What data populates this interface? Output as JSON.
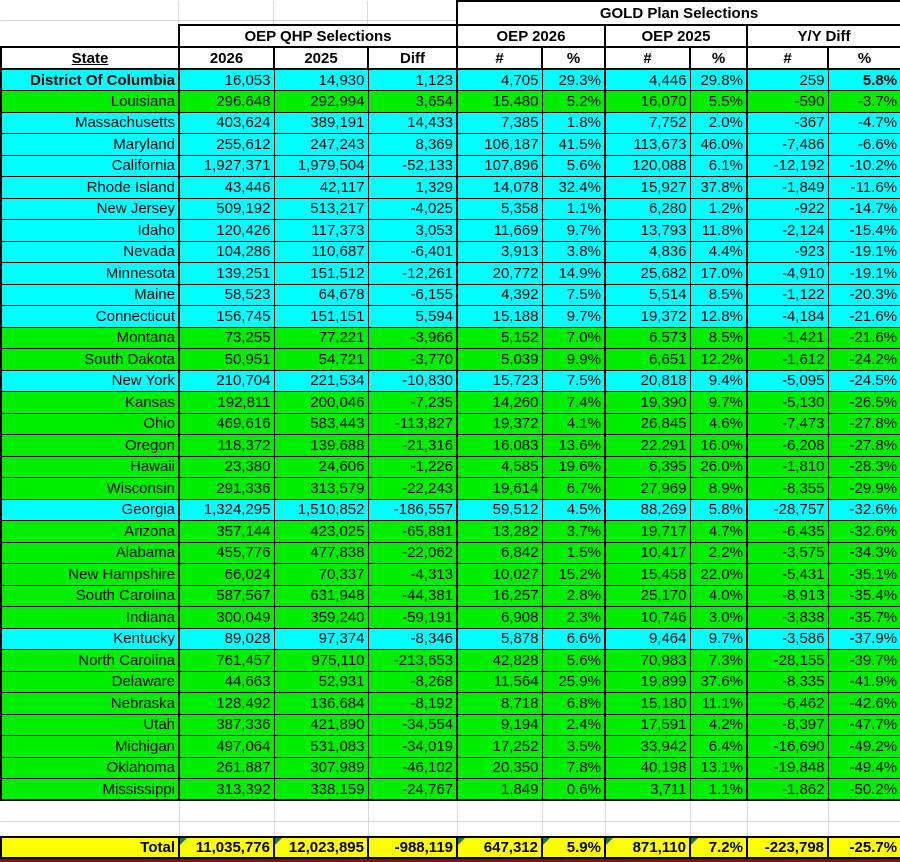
{
  "table": {
    "gold_header": "GOLD Plan Selections",
    "qhp_header": "OEP QHP Selections",
    "groups": {
      "oep2026": "OEP 2026",
      "oep2025": "OEP 2025",
      "yydiff": "Y/Y Diff"
    },
    "columns": [
      "State",
      "2026",
      "2025",
      "Diff",
      "#",
      "%",
      "#",
      "%",
      "#",
      "%"
    ],
    "rows": [
      {
        "state": "District Of Columbia",
        "cells": [
          "16,053",
          "14,930",
          "1,123",
          "4,705",
          "29.3%",
          "4,446",
          "29.8%",
          "259",
          "5.8%"
        ],
        "color": "cyan",
        "bold": true
      },
      {
        "state": "Louisiana",
        "cells": [
          "296,648",
          "292,994",
          "3,654",
          "15,480",
          "5.2%",
          "16,070",
          "5.5%",
          "-590",
          "-3.7%"
        ],
        "color": "green"
      },
      {
        "state": "Massachusetts",
        "cells": [
          "403,624",
          "389,191",
          "14,433",
          "7,385",
          "1.8%",
          "7,752",
          "2.0%",
          "-367",
          "-4.7%"
        ],
        "color": "cyan"
      },
      {
        "state": "Maryland",
        "cells": [
          "255,612",
          "247,243",
          "8,369",
          "106,187",
          "41.5%",
          "113,673",
          "46.0%",
          "-7,486",
          "-6.6%"
        ],
        "color": "cyan"
      },
      {
        "state": "California",
        "cells": [
          "1,927,371",
          "1,979,504",
          "-52,133",
          "107,896",
          "5.6%",
          "120,088",
          "6.1%",
          "-12,192",
          "-10.2%"
        ],
        "color": "cyan"
      },
      {
        "state": "Rhode Island",
        "cells": [
          "43,446",
          "42,117",
          "1,329",
          "14,078",
          "32.4%",
          "15,927",
          "37.8%",
          "-1,849",
          "-11.6%"
        ],
        "color": "cyan"
      },
      {
        "state": "New Jersey",
        "cells": [
          "509,192",
          "513,217",
          "-4,025",
          "5,358",
          "1.1%",
          "6,280",
          "1.2%",
          "-922",
          "-14.7%"
        ],
        "color": "cyan"
      },
      {
        "state": "Idaho",
        "cells": [
          "120,426",
          "117,373",
          "3,053",
          "11,669",
          "9.7%",
          "13,793",
          "11.8%",
          "-2,124",
          "-15.4%"
        ],
        "color": "cyan"
      },
      {
        "state": "Nevada",
        "cells": [
          "104,286",
          "110,687",
          "-6,401",
          "3,913",
          "3.8%",
          "4,836",
          "4.4%",
          "-923",
          "-19.1%"
        ],
        "color": "cyan"
      },
      {
        "state": "Minnesota",
        "cells": [
          "139,251",
          "151,512",
          "-12,261",
          "20,772",
          "14.9%",
          "25,682",
          "17.0%",
          "-4,910",
          "-19.1%"
        ],
        "color": "cyan"
      },
      {
        "state": "Maine",
        "cells": [
          "58,523",
          "64,678",
          "-6,155",
          "4,392",
          "7.5%",
          "5,514",
          "8.5%",
          "-1,122",
          "-20.3%"
        ],
        "color": "cyan"
      },
      {
        "state": "Connecticut",
        "cells": [
          "156,745",
          "151,151",
          "5,594",
          "15,188",
          "9.7%",
          "19,372",
          "12.8%",
          "-4,184",
          "-21.6%"
        ],
        "color": "cyan"
      },
      {
        "state": "Montana",
        "cells": [
          "73,255",
          "77,221",
          "-3,966",
          "5,152",
          "7.0%",
          "6,573",
          "8.5%",
          "-1,421",
          "-21.6%"
        ],
        "color": "green"
      },
      {
        "state": "South Dakota",
        "cells": [
          "50,951",
          "54,721",
          "-3,770",
          "5,039",
          "9.9%",
          "6,651",
          "12.2%",
          "-1,612",
          "-24.2%"
        ],
        "color": "green"
      },
      {
        "state": "New York",
        "cells": [
          "210,704",
          "221,534",
          "-10,830",
          "15,723",
          "7.5%",
          "20,818",
          "9.4%",
          "-5,095",
          "-24.5%"
        ],
        "color": "cyan"
      },
      {
        "state": "Kansas",
        "cells": [
          "192,811",
          "200,046",
          "-7,235",
          "14,260",
          "7.4%",
          "19,390",
          "9.7%",
          "-5,130",
          "-26.5%"
        ],
        "color": "green"
      },
      {
        "state": "Ohio",
        "cells": [
          "469,616",
          "583,443",
          "-113,827",
          "19,372",
          "4.1%",
          "26,845",
          "4.6%",
          "-7,473",
          "-27.8%"
        ],
        "color": "green"
      },
      {
        "state": "Oregon",
        "cells": [
          "118,372",
          "139,688",
          "-21,316",
          "16,083",
          "13.6%",
          "22,291",
          "16.0%",
          "-6,208",
          "-27.8%"
        ],
        "color": "green"
      },
      {
        "state": "Hawaii",
        "cells": [
          "23,380",
          "24,606",
          "-1,226",
          "4,585",
          "19.6%",
          "6,395",
          "26.0%",
          "-1,810",
          "-28.3%"
        ],
        "color": "green"
      },
      {
        "state": "Wisconsin",
        "cells": [
          "291,336",
          "313,579",
          "-22,243",
          "19,614",
          "6.7%",
          "27,969",
          "8.9%",
          "-8,355",
          "-29.9%"
        ],
        "color": "green"
      },
      {
        "state": "Georgia",
        "cells": [
          "1,324,295",
          "1,510,852",
          "-186,557",
          "59,512",
          "4.5%",
          "88,269",
          "5.8%",
          "-28,757",
          "-32.6%"
        ],
        "color": "cyan"
      },
      {
        "state": "Arizona",
        "cells": [
          "357,144",
          "423,025",
          "-65,881",
          "13,282",
          "3.7%",
          "19,717",
          "4.7%",
          "-6,435",
          "-32.6%"
        ],
        "color": "green"
      },
      {
        "state": "Alabama",
        "cells": [
          "455,776",
          "477,838",
          "-22,062",
          "6,842",
          "1.5%",
          "10,417",
          "2.2%",
          "-3,575",
          "-34.3%"
        ],
        "color": "green"
      },
      {
        "state": "New Hampshire",
        "cells": [
          "66,024",
          "70,337",
          "-4,313",
          "10,027",
          "15.2%",
          "15,458",
          "22.0%",
          "-5,431",
          "-35.1%"
        ],
        "color": "green"
      },
      {
        "state": "South Carolina",
        "cells": [
          "587,567",
          "631,948",
          "-44,381",
          "16,257",
          "2.8%",
          "25,170",
          "4.0%",
          "-8,913",
          "-35.4%"
        ],
        "color": "green"
      },
      {
        "state": "Indiana",
        "cells": [
          "300,049",
          "359,240",
          "-59,191",
          "6,908",
          "2.3%",
          "10,746",
          "3.0%",
          "-3,838",
          "-35.7%"
        ],
        "color": "green"
      },
      {
        "state": "Kentucky",
        "cells": [
          "89,028",
          "97,374",
          "-8,346",
          "5,878",
          "6.6%",
          "9,464",
          "9.7%",
          "-3,586",
          "-37.9%"
        ],
        "color": "cyan"
      },
      {
        "state": "North Carolina",
        "cells": [
          "761,457",
          "975,110",
          "-213,653",
          "42,828",
          "5.6%",
          "70,983",
          "7.3%",
          "-28,155",
          "-39.7%"
        ],
        "color": "green"
      },
      {
        "state": "Delaware",
        "cells": [
          "44,663",
          "52,931",
          "-8,268",
          "11,564",
          "25.9%",
          "19,899",
          "37.6%",
          "-8,335",
          "-41.9%"
        ],
        "color": "green"
      },
      {
        "state": "Nebraska",
        "cells": [
          "128,492",
          "136,684",
          "-8,192",
          "8,718",
          "6.8%",
          "15,180",
          "11.1%",
          "-6,462",
          "-42.6%"
        ],
        "color": "green"
      },
      {
        "state": "Utah",
        "cells": [
          "387,336",
          "421,890",
          "-34,554",
          "9,194",
          "2.4%",
          "17,591",
          "4.2%",
          "-8,397",
          "-47.7%"
        ],
        "color": "green"
      },
      {
        "state": "Michigan",
        "cells": [
          "497,064",
          "531,083",
          "-34,019",
          "17,252",
          "3.5%",
          "33,942",
          "6.4%",
          "-16,690",
          "-49.2%"
        ],
        "color": "green"
      },
      {
        "state": "Oklahoma",
        "cells": [
          "261,887",
          "307,989",
          "-46,102",
          "20,350",
          "7.8%",
          "40,198",
          "13.1%",
          "-19,848",
          "-49.4%"
        ],
        "color": "green"
      },
      {
        "state": "Mississippi",
        "cells": [
          "313,392",
          "338,159",
          "-24,767",
          "1,849",
          "0.6%",
          "3,711",
          "1.1%",
          "-1,862",
          "-50.2%"
        ],
        "color": "green"
      }
    ],
    "total": {
      "label": "Total",
      "cells": [
        "11,035,776",
        "12,023,895",
        "-988,119",
        "647,312",
        "5.9%",
        "871,110",
        "7.2%",
        "-223,798",
        "-25.7%"
      ],
      "flags": [
        true,
        true,
        false,
        true,
        true,
        true,
        true,
        false,
        false
      ]
    }
  },
  "colors": {
    "row_cyan": "#00FFFF",
    "row_green": "#00EE00",
    "total_yellow": "#FFFF00",
    "flag_green": "#1E7D32",
    "bottom_strip_red": "#7B1600",
    "gridline_gray": "#D8D8D8"
  }
}
